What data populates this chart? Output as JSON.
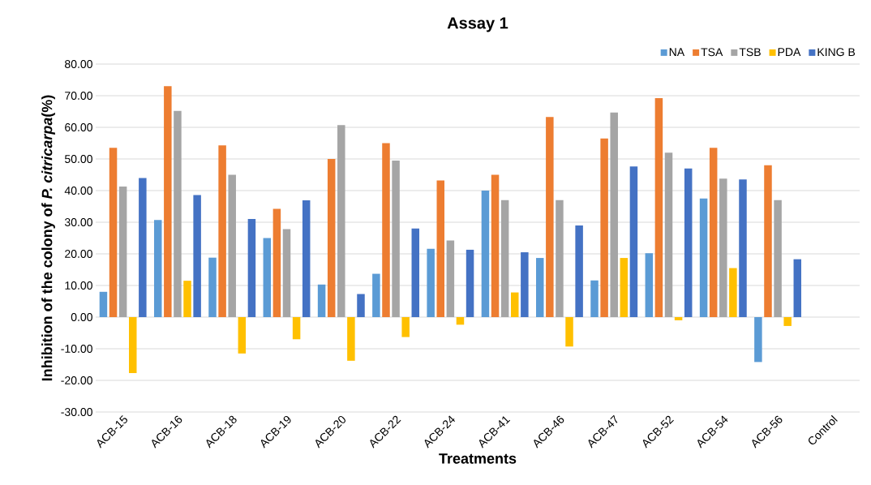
{
  "chart_data": {
    "type": "bar",
    "title": "Assay 1",
    "xlabel": "Treatments",
    "ylabel": "Inhibition of the colony of *P. citricarpa*(%)",
    "categories": [
      "ACB-15",
      "ACB-16",
      "ACB-18",
      "ACB-19",
      "ACB-20",
      "ACB-22",
      "ACB-24",
      "ACB-41",
      "ACB-46",
      "ACB-47",
      "ACB-52",
      "ACB-54",
      "ACB-56",
      "Control"
    ],
    "series": [
      {
        "name": "NA",
        "color": "#5b9bd5",
        "values": [
          8,
          30.7,
          18.8,
          25,
          10.3,
          13.7,
          21.6,
          40,
          18.7,
          11.6,
          20.2,
          37.5,
          -14.2,
          0
        ]
      },
      {
        "name": "TSA",
        "color": "#ed7d31",
        "values": [
          53.5,
          73,
          54.3,
          34.2,
          50,
          55,
          43.2,
          45,
          63.3,
          56.5,
          69.2,
          53.5,
          48,
          0
        ]
      },
      {
        "name": "TSB",
        "color": "#a5a5a5",
        "values": [
          41.3,
          65.2,
          45,
          27.8,
          60.7,
          49.5,
          24.2,
          37,
          37,
          64.7,
          52,
          43.8,
          37,
          0
        ]
      },
      {
        "name": "PDA",
        "color": "#ffc000",
        "values": [
          -17.7,
          11.5,
          -11.5,
          -7,
          -13.8,
          -6.3,
          -2.4,
          7.8,
          -9.3,
          18.7,
          -1,
          15.5,
          -2.8,
          0
        ]
      },
      {
        "name": "KING B",
        "color": "#4472c4",
        "values": [
          44,
          38.6,
          31,
          36.9,
          7.3,
          28,
          21.3,
          20.5,
          29,
          47.6,
          47,
          43.5,
          18.3,
          0
        ]
      }
    ],
    "ylim": [
      -30,
      80
    ],
    "yticks": [
      {
        "value": -30,
        "label": "-30.00"
      },
      {
        "value": -20,
        "label": "-20.00"
      },
      {
        "value": -10,
        "label": "-10.00"
      },
      {
        "value": 0,
        "label": "0.00"
      },
      {
        "value": 10,
        "label": "10.00"
      },
      {
        "value": 20,
        "label": "20.00"
      },
      {
        "value": 30,
        "label": "30.00"
      },
      {
        "value": 40,
        "label": "40.00"
      },
      {
        "value": 50,
        "label": "50.00"
      },
      {
        "value": 60,
        "label": "60.00"
      },
      {
        "value": 70,
        "label": "70.00"
      },
      {
        "value": 80,
        "label": "80.00"
      }
    ],
    "grid": "y",
    "legend": "top right"
  }
}
